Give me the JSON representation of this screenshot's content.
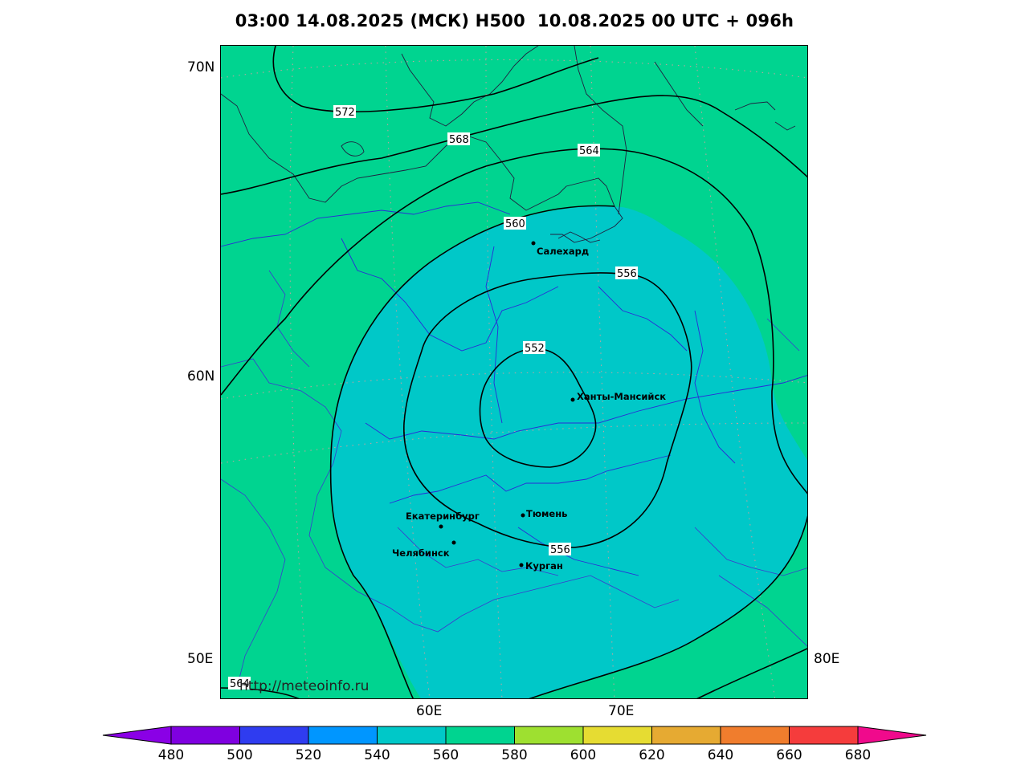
{
  "title": "03:00 14.08.2025 (МСК) H500  10.08.2025 00 UTC + 096h",
  "axes": {
    "lat_labels": [
      "70N",
      "60N",
      "50E"
    ],
    "lon_labels": [
      "60E",
      "70E"
    ],
    "corner_right": "80E"
  },
  "contour_labels": [
    "572",
    "568",
    "564",
    "560",
    "556",
    "552",
    "556",
    "564"
  ],
  "cities": [
    {
      "name": "Салехард"
    },
    {
      "name": "Ханты-Мансийск"
    },
    {
      "name": "Екатеринбург"
    },
    {
      "name": "Тюмень"
    },
    {
      "name": "Челябинск"
    },
    {
      "name": "Курган"
    }
  ],
  "watermark": "http://meteoinfo.ru",
  "colorbar": {
    "ticks": [
      "480",
      "500",
      "520",
      "540",
      "560",
      "580",
      "600",
      "620",
      "640",
      "660",
      "680"
    ],
    "colors": [
      "#8a00e6",
      "#7f00e0",
      "#2f3cf0",
      "#0096ff",
      "#00c8c8",
      "#00d490",
      "#9ee030",
      "#e6dc32",
      "#e6aa32",
      "#f07d2d",
      "#f53c3c",
      "#f00a8c"
    ]
  },
  "fill_colors": {
    "outer": "#00d490",
    "inner": "#00c8c8"
  }
}
